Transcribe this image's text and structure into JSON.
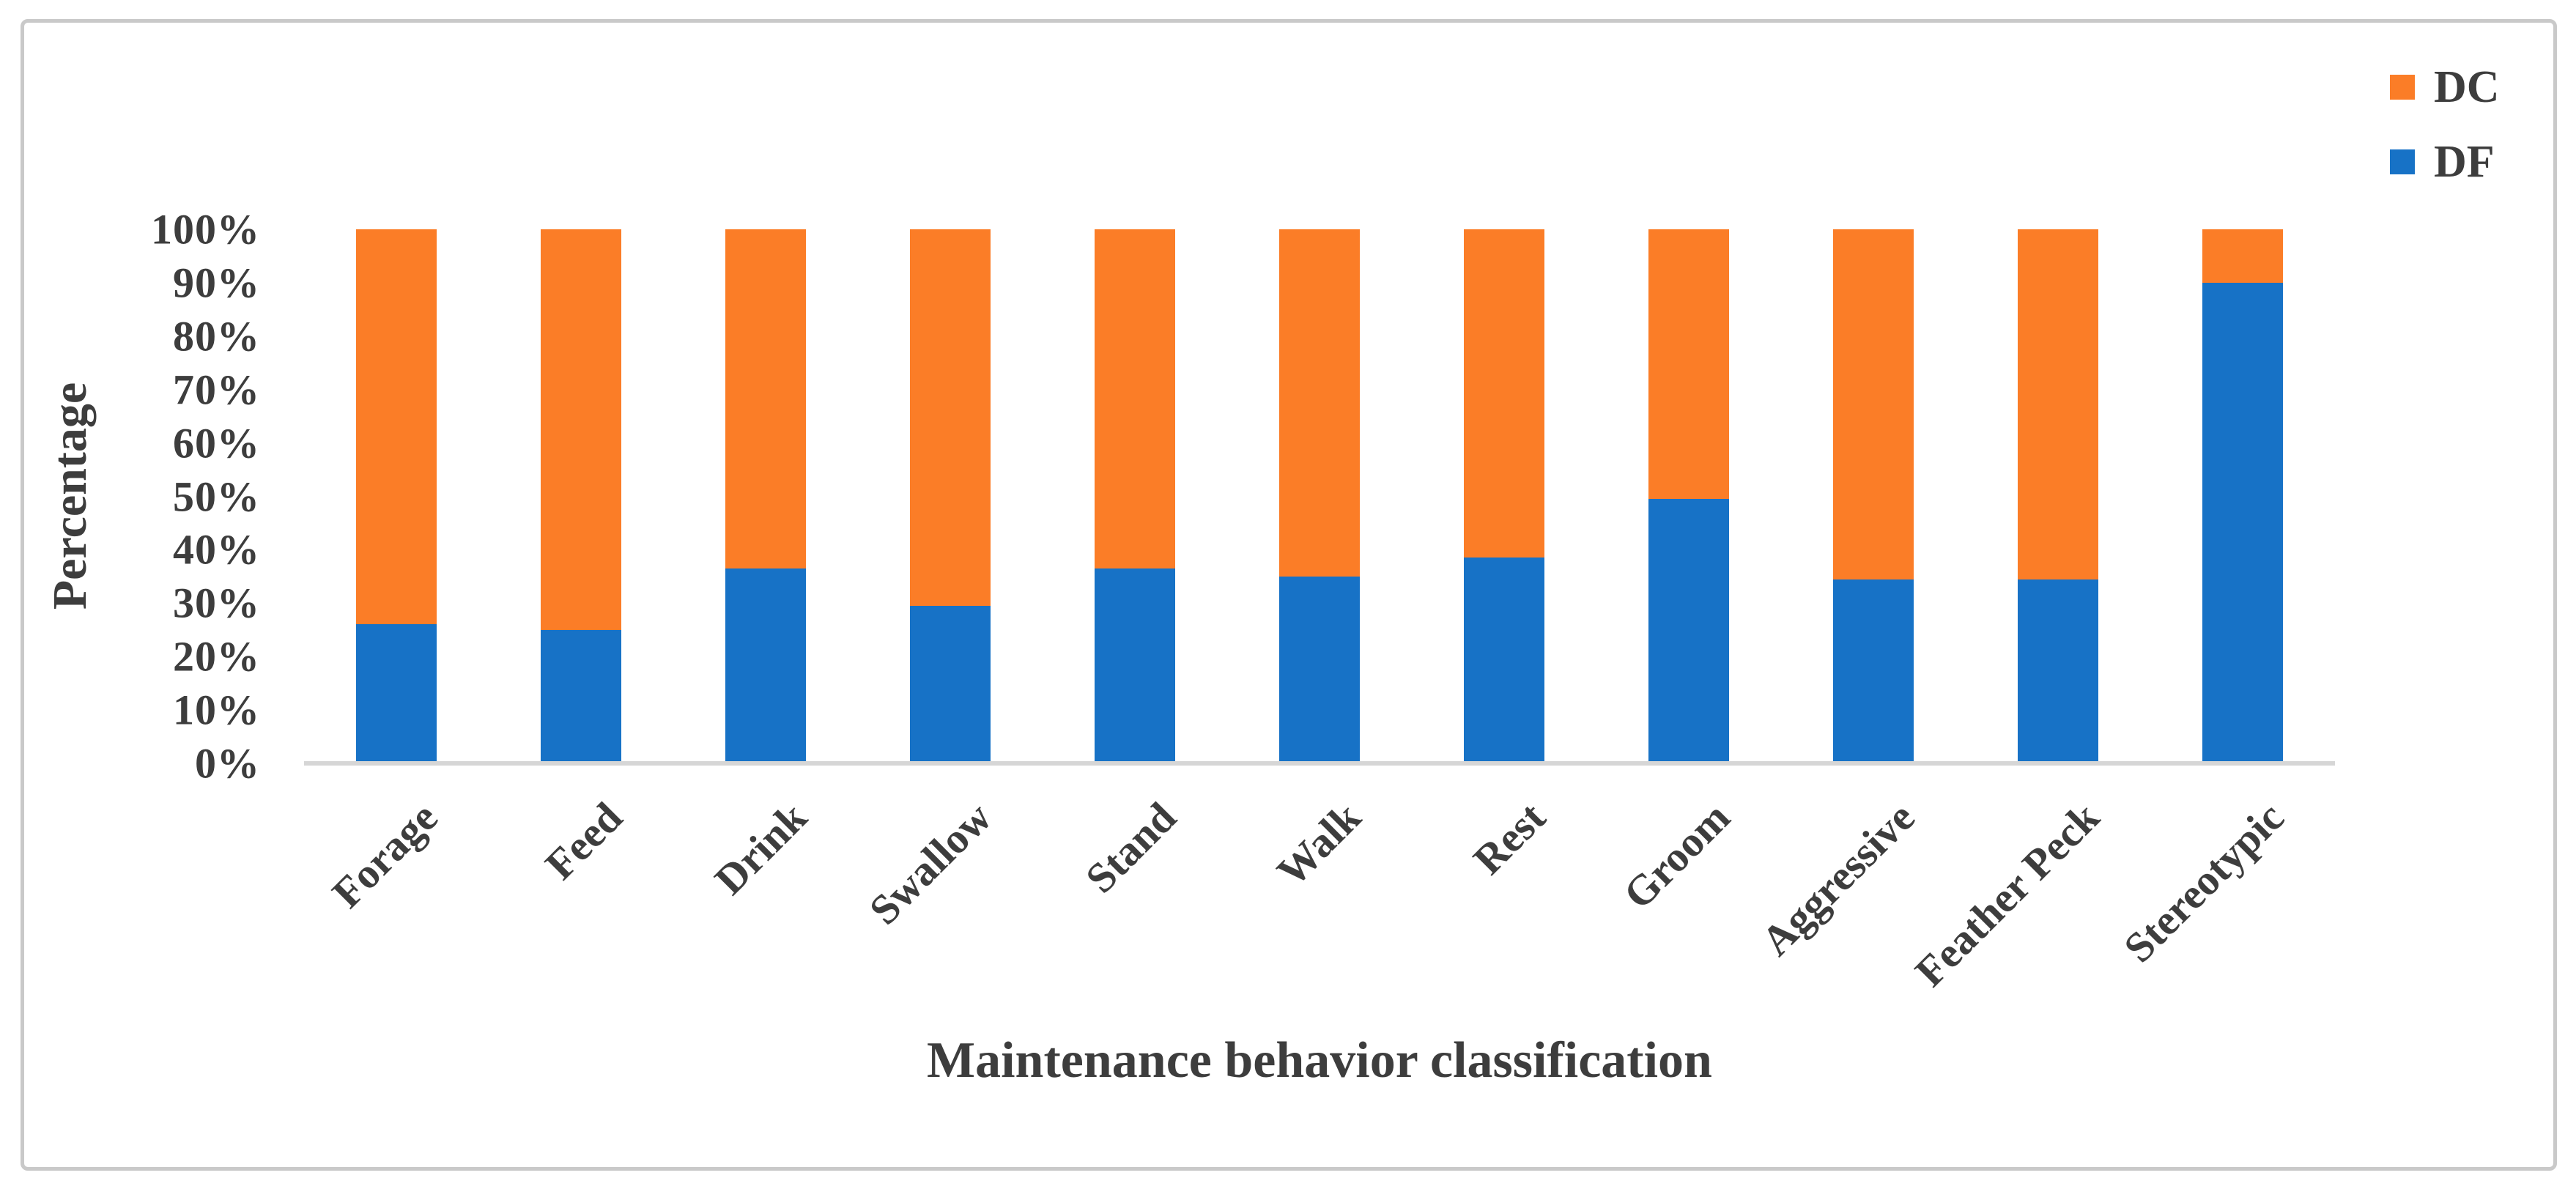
{
  "figure": {
    "background": "#ffffff",
    "border_color": "#c9c9c9",
    "text_color": "#3d3d3d",
    "axis_line_color": "#d6d6d6"
  },
  "chart_data": {
    "type": "bar",
    "subtype": "100%-stacked-column",
    "title": "",
    "xlabel": "Maintenance behavior classification",
    "ylabel": "Percentage",
    "categories": [
      "Forage",
      "Feed",
      "Drink",
      "Swallow",
      "Stand",
      "Walk",
      "Rest",
      "Groom",
      "Aggressive",
      "Feather Peck",
      "Stereotypic"
    ],
    "series": [
      {
        "name": "DF",
        "color": "#1772C6",
        "position": "bottom",
        "values": [
          26,
          25,
          36.5,
          29.5,
          36.5,
          35,
          38.5,
          49.5,
          34.5,
          34.5,
          90
        ]
      },
      {
        "name": "DC",
        "color": "#FB7D27",
        "position": "top",
        "values": [
          74,
          75,
          63.5,
          70.5,
          63.5,
          65,
          61.5,
          50.5,
          65.5,
          65.5,
          10
        ]
      }
    ],
    "ylim": [
      0,
      100
    ],
    "yticks": [
      "0%",
      "10%",
      "20%",
      "30%",
      "40%",
      "50%",
      "60%",
      "70%",
      "80%",
      "90%",
      "100%"
    ],
    "grid": "off",
    "legend": {
      "position": "top-right",
      "entries": [
        "DC",
        "DF"
      ]
    }
  }
}
